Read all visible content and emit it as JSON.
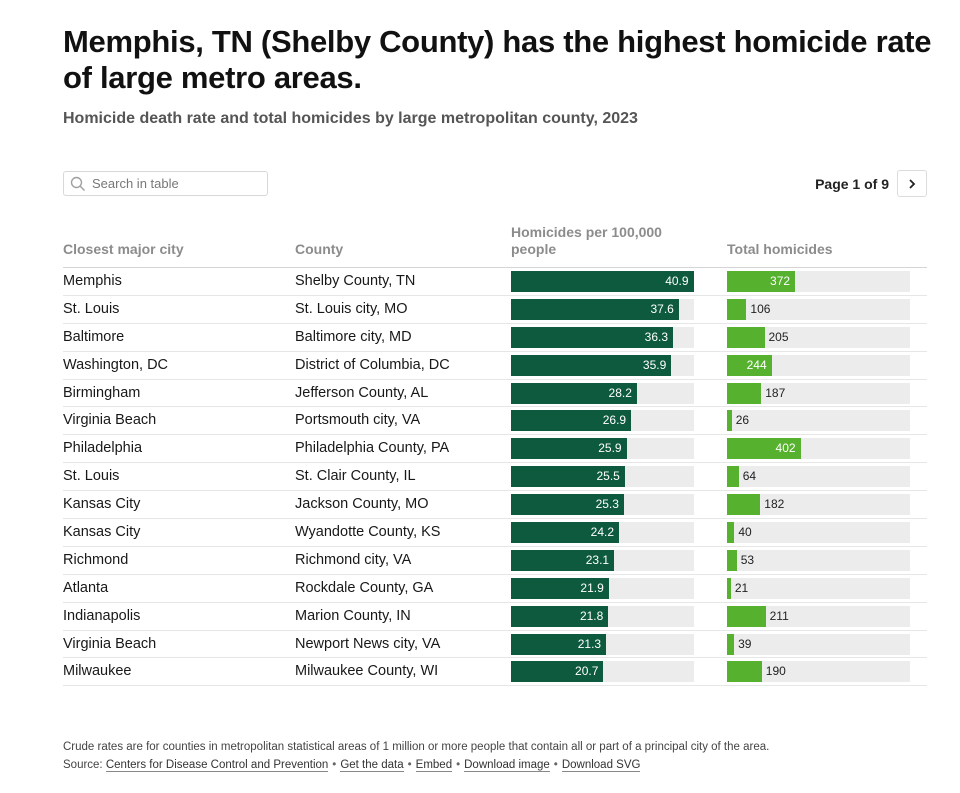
{
  "header": {
    "title": "Memphis, TN (Shelby County) has the highest homicide rate of large metro areas.",
    "subtitle": "Homicide death rate and total homicides by large metropolitan county, 2023"
  },
  "search": {
    "placeholder": "Search in table"
  },
  "pagination": {
    "label": "Page 1 of 9"
  },
  "columns": {
    "city": "Closest major city",
    "county": "County",
    "rate": "Homicides per 100,000 people",
    "total": "Total homicides"
  },
  "colors": {
    "rate_bar": "#0d5a3e",
    "total_bar": "#56b12e",
    "bar_bg": "#ececec"
  },
  "chart_data": {
    "type": "table",
    "title": "Memphis, TN (Shelby County) has the highest homicide rate of large metro areas.",
    "subtitle": "Homicide death rate and total homicides by large metropolitan county, 2023",
    "rate_max": 41,
    "total_max": 1000,
    "rows": [
      {
        "city": "Memphis",
        "county": "Shelby County, TN",
        "rate": "40.9",
        "total": "372"
      },
      {
        "city": "St. Louis",
        "county": "St. Louis city, MO",
        "rate": "37.6",
        "total": "106"
      },
      {
        "city": "Baltimore",
        "county": "Baltimore city, MD",
        "rate": "36.3",
        "total": "205"
      },
      {
        "city": "Washington, DC",
        "county": "District of Columbia, DC",
        "rate": "35.9",
        "total": "244"
      },
      {
        "city": "Birmingham",
        "county": "Jefferson County, AL",
        "rate": "28.2",
        "total": "187"
      },
      {
        "city": "Virginia Beach",
        "county": "Portsmouth city, VA",
        "rate": "26.9",
        "total": "26"
      },
      {
        "city": "Philadelphia",
        "county": "Philadelphia County, PA",
        "rate": "25.9",
        "total": "402"
      },
      {
        "city": "St. Louis",
        "county": "St. Clair County, IL",
        "rate": "25.5",
        "total": "64"
      },
      {
        "city": "Kansas City",
        "county": "Jackson County, MO",
        "rate": "25.3",
        "total": "182"
      },
      {
        "city": "Kansas City",
        "county": "Wyandotte County, KS",
        "rate": "24.2",
        "total": "40"
      },
      {
        "city": "Richmond",
        "county": "Richmond city, VA",
        "rate": "23.1",
        "total": "53"
      },
      {
        "city": "Atlanta",
        "county": "Rockdale County, GA",
        "rate": "21.9",
        "total": "21"
      },
      {
        "city": "Indianapolis",
        "county": "Marion County, IN",
        "rate": "21.8",
        "total": "211"
      },
      {
        "city": "Virginia Beach",
        "county": "Newport News city, VA",
        "rate": "21.3",
        "total": "39"
      },
      {
        "city": "Milwaukee",
        "county": "Milwaukee County, WI",
        "rate": "20.7",
        "total": "190"
      }
    ]
  },
  "footer": {
    "note": "Crude rates are for counties in metropolitan statistical areas of 1 million or more people that contain all or part of a principal city of the area.",
    "source_label": "Source:",
    "source_link": "Centers for Disease Control and Prevention",
    "get_data": "Get the data",
    "embed": "Embed",
    "download_image": "Download image",
    "download_svg": "Download SVG",
    "separator": "•"
  }
}
